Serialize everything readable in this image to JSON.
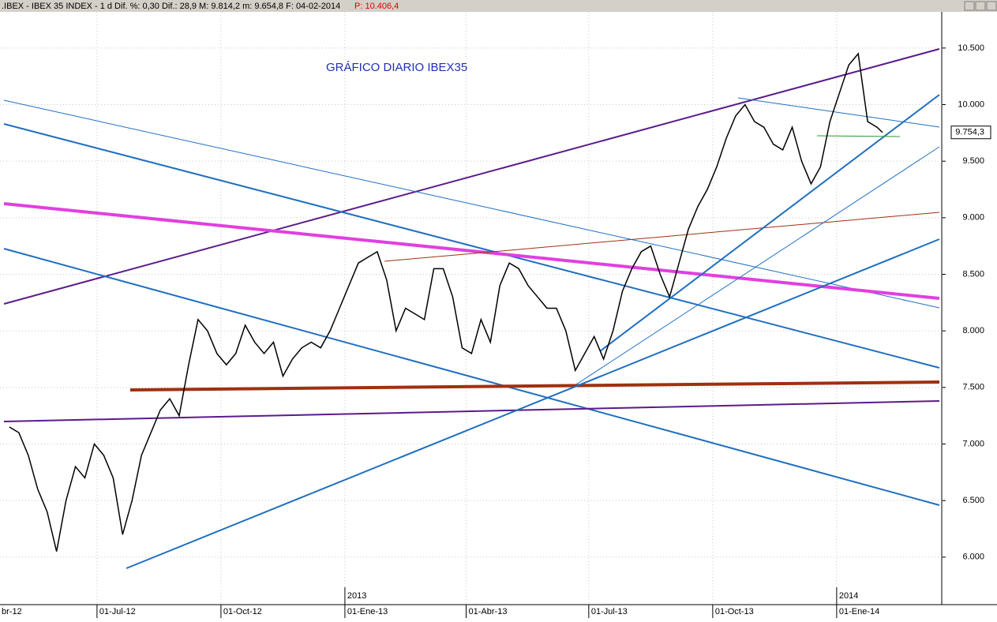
{
  "header": {
    "info": ".IBEX - IBEX 35 INDEX - 1 d Dif. %: 0,30 Dif.: 28,9 M: 9.814,2 m: 9.654,8 F: 04-02-2014",
    "price": "P: 10.406,4"
  },
  "chart_data": {
    "type": "line",
    "title": "GRÁFICO DIARIO IBEX35",
    "x": [
      "2012-04-27",
      "2012-05-04",
      "2012-05-11",
      "2012-05-18",
      "2012-05-25",
      "2012-06-01",
      "2012-06-08",
      "2012-06-15",
      "2012-06-22",
      "2012-06-29",
      "2012-07-06",
      "2012-07-13",
      "2012-07-20",
      "2012-07-27",
      "2012-08-03",
      "2012-08-10",
      "2012-08-17",
      "2012-08-24",
      "2012-08-31",
      "2012-09-07",
      "2012-09-14",
      "2012-09-21",
      "2012-09-28",
      "2012-10-05",
      "2012-10-12",
      "2012-10-19",
      "2012-10-26",
      "2012-11-02",
      "2012-11-09",
      "2012-11-16",
      "2012-11-23",
      "2012-11-30",
      "2012-12-07",
      "2012-12-14",
      "2012-12-21",
      "2012-12-28",
      "2013-01-04",
      "2013-01-11",
      "2013-01-18",
      "2013-01-25",
      "2013-02-01",
      "2013-02-08",
      "2013-02-15",
      "2013-02-22",
      "2013-03-01",
      "2013-03-08",
      "2013-03-15",
      "2013-03-22",
      "2013-03-29",
      "2013-04-05",
      "2013-04-12",
      "2013-04-19",
      "2013-04-26",
      "2013-05-03",
      "2013-05-10",
      "2013-05-17",
      "2013-05-24",
      "2013-05-31",
      "2013-06-07",
      "2013-06-14",
      "2013-06-21",
      "2013-06-28",
      "2013-07-05",
      "2013-07-12",
      "2013-07-19",
      "2013-07-26",
      "2013-08-02",
      "2013-08-09",
      "2013-08-16",
      "2013-08-23",
      "2013-08-30",
      "2013-09-06",
      "2013-09-13",
      "2013-09-20",
      "2013-09-27",
      "2013-10-04",
      "2013-10-11",
      "2013-10-18",
      "2013-10-25",
      "2013-11-01",
      "2013-11-08",
      "2013-11-15",
      "2013-11-22",
      "2013-11-29",
      "2013-12-06",
      "2013-12-13",
      "2013-12-20",
      "2013-12-27",
      "2014-01-03",
      "2014-01-10",
      "2014-01-17",
      "2014-01-24",
      "2014-01-31",
      "2014-02-04"
    ],
    "series": [
      {
        "name": "IBEX 35",
        "color": "#000000",
        "values": [
          7150,
          7100,
          6900,
          6600,
          6400,
          6050,
          6500,
          6800,
          6700,
          7000,
          6900,
          6700,
          6200,
          6500,
          6900,
          7100,
          7300,
          7400,
          7250,
          7700,
          8100,
          8000,
          7800,
          7700,
          7800,
          8050,
          7900,
          7800,
          7900,
          7600,
          7750,
          7850,
          7900,
          7850,
          8000,
          8200,
          8400,
          8600,
          8650,
          8700,
          8450,
          8000,
          8200,
          8150,
          8100,
          8550,
          8550,
          8300,
          7850,
          7800,
          8100,
          7900,
          8400,
          8600,
          8550,
          8400,
          8300,
          8200,
          8200,
          8000,
          7650,
          7800,
          7950,
          7750,
          8000,
          8350,
          8550,
          8700,
          8750,
          8500,
          8300,
          8600,
          8900,
          9100,
          9250,
          9450,
          9700,
          9900,
          10000,
          9850,
          9800,
          9650,
          9600,
          9800,
          9500,
          9300,
          9450,
          9850,
          10100,
          10350,
          10450,
          9850,
          9800,
          9754.3
        ]
      }
    ],
    "last_label": "9.754,3",
    "xlim": [
      "2012-04-20",
      "2014-03-20"
    ],
    "xticks": [
      {
        "value": "2012-04-01",
        "label": "br-12"
      },
      {
        "value": "2012-07-01",
        "label": "01-Jul-12"
      },
      {
        "value": "2012-10-01",
        "label": "01-Oct-12"
      },
      {
        "value": "2013-01-01",
        "label": "01-Ene-13"
      },
      {
        "value": "2013-04-01",
        "label": "01-Abr-13"
      },
      {
        "value": "2013-07-01",
        "label": "01-Jul-13"
      },
      {
        "value": "2013-10-01",
        "label": "01-Oct-13"
      },
      {
        "value": "2014-01-01",
        "label": "01-Ene-14"
      }
    ],
    "year_ticks": [
      {
        "value": "2013-01-01",
        "label": "2013"
      },
      {
        "value": "2014-01-01",
        "label": "2014"
      }
    ],
    "ylim": [
      5580,
      10820
    ],
    "yticks": [
      {
        "value": 6000,
        "label": "6.000"
      },
      {
        "value": 6500,
        "label": "6.500"
      },
      {
        "value": 7000,
        "label": "7.000"
      },
      {
        "value": 7500,
        "label": "7.500"
      },
      {
        "value": 8000,
        "label": "8.000"
      },
      {
        "value": 8500,
        "label": "8.500"
      },
      {
        "value": 9000,
        "label": "9.000"
      },
      {
        "value": 9500,
        "label": "9.500"
      },
      {
        "value": 10000,
        "label": "10.000"
      },
      {
        "value": 10500,
        "label": "10.500"
      }
    ],
    "grid": true
  }
}
